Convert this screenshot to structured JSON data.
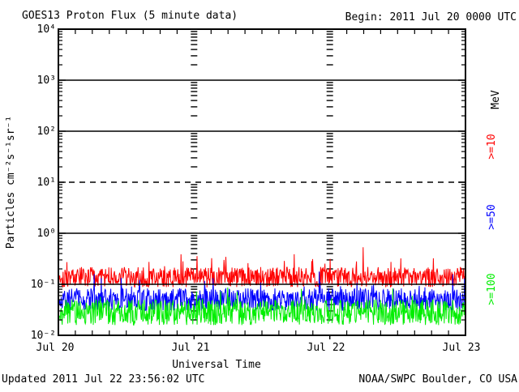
{
  "header": {
    "title": "GOES13 Proton Flux (5 minute data)",
    "begin_label": "Begin: 2011 Jul 20 0000 UTC"
  },
  "footer": {
    "updated": "Updated 2011 Jul 22 23:56:02 UTC",
    "source": "NOAA/SWPC Boulder, CO USA"
  },
  "axes": {
    "y_title": "Particles cm⁻²s⁻¹sr⁻¹",
    "y_ticks": [
      "10⁴",
      "10³",
      "10²",
      "10¹",
      "10⁰",
      "10⁻¹",
      "10⁻²"
    ],
    "x_title": "Universal Time",
    "x_ticks": [
      "Jul 20",
      "Jul 21",
      "Jul 22",
      "Jul 23"
    ]
  },
  "legend": {
    "unit": "MeV",
    "items": [
      {
        "label": ">=10",
        "color": "#ff0000"
      },
      {
        "label": ">=50",
        "color": "#0000ff"
      },
      {
        "label": ">=100",
        "color": "#00ee00"
      }
    ]
  },
  "chart_data": {
    "type": "line",
    "title": "GOES13 Proton Flux (5 minute data)",
    "xlabel": "Universal Time",
    "ylabel": "Particles cm⁻²s⁻¹sr⁻¹",
    "x_day_labels": [
      "Jul 20",
      "Jul 21",
      "Jul 22",
      "Jul 23"
    ],
    "x_minor_tick_hours": 3,
    "days": 3,
    "points_per_day": 288,
    "y_scale": "log10",
    "y_log_range": [
      -2,
      4
    ],
    "y_tick_labels": [
      "10⁴",
      "10³",
      "10²",
      "10¹",
      "10⁰",
      "10⁻¹",
      "10⁻²"
    ],
    "solid_gridlines_log": [
      3,
      2,
      0,
      -1
    ],
    "dashed_gridlines_log": [
      1
    ],
    "vertical_guide_days": [
      1,
      2
    ],
    "background": "#ffffff",
    "frame_color": "#000000",
    "legend_position": "right",
    "series": [
      {
        "name": ">=10 MeV",
        "color": "#ff0000",
        "seed": 101,
        "log_center": -0.86,
        "log_halfrange": 0.2,
        "spike_prob": 0.05,
        "spike_max": 0.45,
        "approx_level_flux": 0.14,
        "approx_range_flux": [
          0.09,
          0.45
        ]
      },
      {
        "name": ">=50 MeV",
        "color": "#0000ff",
        "seed": 202,
        "log_center": -1.3,
        "log_halfrange": 0.22,
        "spike_prob": 0.05,
        "spike_max": 0.4,
        "approx_level_flux": 0.05,
        "approx_range_flux": [
          0.03,
          0.18
        ]
      },
      {
        "name": ">=100 MeV",
        "color": "#00ee00",
        "seed": 303,
        "log_center": -1.55,
        "log_halfrange": 0.25,
        "spike_prob": 0.05,
        "spike_max": 0.3,
        "approx_level_flux": 0.028,
        "approx_range_flux": [
          0.014,
          0.09
        ]
      }
    ]
  }
}
